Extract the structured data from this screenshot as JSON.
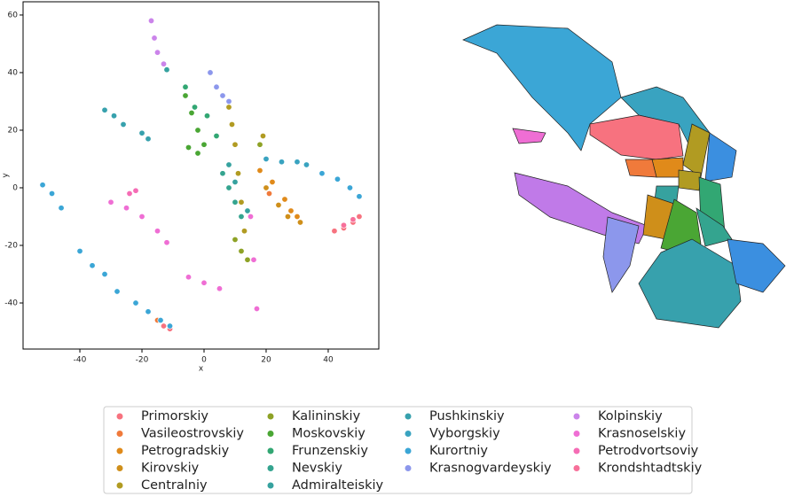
{
  "chart_data": {
    "type": "scatter",
    "x_label": "x",
    "y_label": "y",
    "xlim": [
      -58.3,
      56.3
    ],
    "ylim": [
      -56,
      64.6
    ],
    "xticks": [
      -40,
      -20,
      0,
      20,
      40
    ],
    "yticks": [
      -40,
      -20,
      0,
      20,
      40,
      60
    ],
    "legend_position": "bottom",
    "series": [
      {
        "name": "Primorskiy",
        "color": "#f7727f",
        "x": [
          42,
          45,
          48,
          50,
          -13,
          -11
        ],
        "y": [
          -15,
          -14,
          -12,
          -10,
          -48,
          -49
        ]
      },
      {
        "name": "Vasileostrovskiy",
        "color": "#f07a3b",
        "x": [
          -15,
          21,
          24
        ],
        "y": [
          -46,
          -2,
          -6
        ]
      },
      {
        "name": "Petrogradskiy",
        "color": "#e08a1a",
        "x": [
          18,
          22,
          26,
          28,
          30
        ],
        "y": [
          6,
          2,
          -4,
          -8,
          -10
        ]
      },
      {
        "name": "Kirovskiy",
        "color": "#cf8f1a",
        "x": [
          20,
          24,
          27,
          31
        ],
        "y": [
          0,
          -6,
          -10,
          -12
        ]
      },
      {
        "name": "Centralniy",
        "color": "#b19b22",
        "x": [
          8,
          9,
          10,
          11,
          12,
          13,
          19
        ],
        "y": [
          28,
          22,
          15,
          5,
          -5,
          -15,
          18
        ]
      },
      {
        "name": "Kalininskiy",
        "color": "#8ea226",
        "x": [
          10,
          12,
          14,
          18
        ],
        "y": [
          -18,
          -22,
          -25,
          15
        ]
      },
      {
        "name": "Moskovskiy",
        "color": "#4aa634",
        "x": [
          -6,
          -4,
          -2,
          0,
          -5,
          -2
        ],
        "y": [
          32,
          26,
          20,
          15,
          14,
          12
        ]
      },
      {
        "name": "Frunzenskiy",
        "color": "#32a773",
        "x": [
          -6,
          -3,
          1,
          4
        ],
        "y": [
          35,
          28,
          25,
          18
        ]
      },
      {
        "name": "Nevskiy",
        "color": "#34a48f",
        "x": [
          6,
          8,
          10,
          12
        ],
        "y": [
          5,
          0,
          -5,
          -10
        ]
      },
      {
        "name": "Admiralteiskiy",
        "color": "#36a29f",
        "x": [
          8,
          10,
          14,
          -12
        ],
        "y": [
          8,
          2,
          -8,
          41
        ]
      },
      {
        "name": "Pushkinskiy",
        "color": "#37a1ad",
        "x": [
          -32,
          -29,
          -26,
          -20,
          -18
        ],
        "y": [
          27,
          25,
          22,
          19,
          17
        ]
      },
      {
        "name": "Vyborgskiy",
        "color": "#39a3c0",
        "x": [
          20,
          25,
          30,
          33
        ],
        "y": [
          10,
          9,
          9,
          8
        ]
      },
      {
        "name": "Kurortniy",
        "color": "#3ba6d6",
        "x": [
          -52,
          -49,
          -46,
          -40,
          -36,
          -32,
          -28,
          -22,
          -18,
          -14,
          -11,
          38,
          43,
          47,
          50
        ],
        "y": [
          1,
          -2,
          -7,
          -22,
          -27,
          -30,
          -36,
          -40,
          -43,
          -46,
          -48,
          5,
          3,
          0,
          -3
        ]
      },
      {
        "name": "Krasnogvardeyskiy",
        "color": "#8c97ec",
        "x": [
          2,
          4,
          6,
          8
        ],
        "y": [
          40,
          35,
          32,
          30
        ]
      },
      {
        "name": "Kolpinskiy",
        "color": "#cb84ea",
        "x": [
          -17,
          -16,
          -15,
          -13
        ],
        "y": [
          58,
          52,
          47,
          43
        ]
      },
      {
        "name": "Krasnoselskiy",
        "color": "#ef6ed4",
        "x": [
          -30,
          -25,
          -20,
          -15,
          -12,
          15,
          16,
          17,
          -5,
          0,
          5
        ],
        "y": [
          -5,
          -7,
          -10,
          -15,
          -19,
          -10,
          -25,
          -42,
          -31,
          -33,
          -35
        ]
      },
      {
        "name": "Petrodvortsoviy",
        "color": "#f56cb5",
        "x": [
          -24,
          -22
        ],
        "y": [
          -2,
          -1
        ]
      },
      {
        "name": "Krondshtadtskiy",
        "color": "#f7709a",
        "x": [
          45,
          48
        ],
        "y": [
          -13,
          -11
        ]
      }
    ]
  }
}
